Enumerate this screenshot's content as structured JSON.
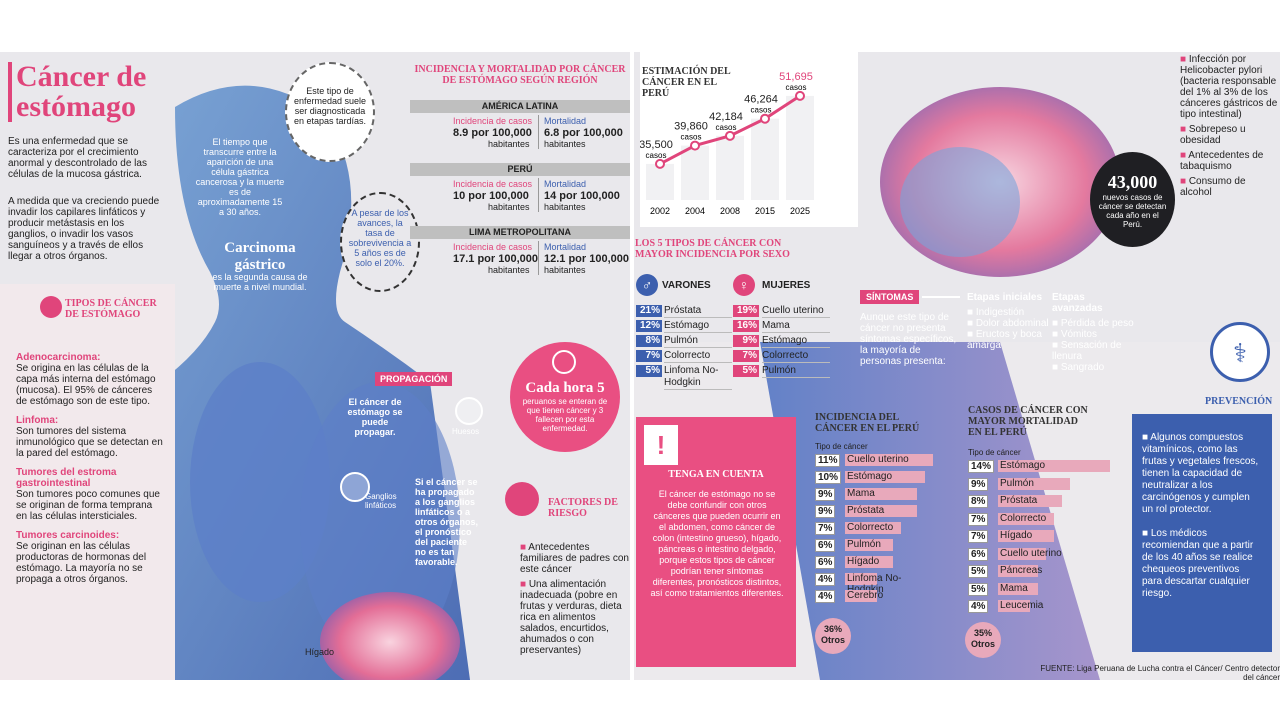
{
  "title": "Cáncer de estómago",
  "intro1": "Es una enfermedad que se caracteriza por el crecimiento anormal y descontrolado de las células de la mucosa gástrica.",
  "intro2": "A medida que va creciendo puede invadir los capilares linfáticos y producir metástasis en los ganglios, o invadir los vasos sanguíneos y a través de ellos llegar a otros órganos.",
  "bubble": "Este tipo de enfermedad suele ser diagnosticada en etapas tardías.",
  "time_text": "El tiempo que transcurre entre la aparición de una célula gástrica cancerosa y la muerte es de aproximadamente 15 a 30 años.",
  "survival": "A pesar de los avances, la tasa de sobrevivencia a 5 años es de solo el 20%.",
  "carcinoma_title": "Carcinoma gástrico",
  "carcinoma_sub": "es la segunda causa de muerte a nivel mundial.",
  "tipos_title": "TIPOS DE CÁNCER DE ESTÓMAGO",
  "tipos": [
    {
      "name": "Adenocarcinoma:",
      "desc": "Se origina en las células de la capa más interna del estómago (mucosa). El 95% de cánceres de estómago son de este tipo."
    },
    {
      "name": "Linfoma:",
      "desc": "Son tumores del sistema inmunológico que se detectan en la pared del estómago."
    },
    {
      "name": "Tumores del estroma gastrointestinal",
      "desc": "Son tumores poco comunes que se originan de forma temprana en las células intersticiales."
    },
    {
      "name": "Tumores carcinoides:",
      "desc": "Se originan en las células productoras de hormonas del estómago. La mayoría no se propaga a otros órganos."
    }
  ],
  "propagacion": {
    "title": "PROPAGACIÓN",
    "text1": "El cáncer de estómago se puede propagar.",
    "text2": "Si el cáncer se ha propagado a los ganglios linfáticos o a otros órganos, el pronóstico del paciente no es tan favorable.",
    "huesos": "Huesos",
    "ganglios": "Ganglios linfáticos",
    "higado": "Hígado"
  },
  "region": {
    "title": "INCIDENCIA Y MORTALIDAD POR CÁNCER DE ESTÓMAGO SEGÚN REGIÓN",
    "inc_label": "Incidencia de casos",
    "mort_label": "Mortalidad",
    "hab": "habitantes",
    "rows": [
      {
        "name": "AMÉRICA LATINA",
        "inc": "8.9 por 100,000",
        "mort": "6.8 por 100,000"
      },
      {
        "name": "PERÚ",
        "inc": "10 por 100,000",
        "mort": "14 por 100,000"
      },
      {
        "name": "LIMA METROPOLITANA",
        "inc": "17.1 por 100,000",
        "mort": "12.1 por 100,000"
      }
    ]
  },
  "clock": {
    "title": "Cada hora 5",
    "text": "peruanos se enteran de que tienen cáncer y 3 fallecen por esta enfermedad."
  },
  "factores": {
    "title": "FACTORES DE RIESGO",
    "items": [
      "Antecedentes familiares de padres con este cáncer",
      "Una alimentación inadecuada (pobre en frutas y verduras, dieta rica en alimentos salados, encurtidos, ahumados o con preservantes)"
    ]
  },
  "estimacion": {
    "title": "ESTIMACIÓN DEL CÁNCER EN EL PERÚ",
    "unit": "casos"
  },
  "chart_data": {
    "type": "line",
    "title": "ESTIMACIÓN DEL CÁNCER EN EL PERÚ",
    "x": [
      "2002",
      "2004",
      "2008",
      "2015",
      "2025"
    ],
    "values": [
      35500,
      39860,
      42184,
      46264,
      51695
    ],
    "labels": [
      "35,500",
      "39,860",
      "42,184",
      "46,264",
      "51,695"
    ]
  },
  "sexo": {
    "title": "LOS 5 TIPOS DE CÁNCER CON MAYOR INCIDENCIA POR SEXO",
    "varones_label": "VARONES",
    "mujeres_label": "MUJERES",
    "varones": [
      {
        "p": "21%",
        "n": "Próstata"
      },
      {
        "p": "12%",
        "n": "Estómago"
      },
      {
        "p": "8%",
        "n": "Pulmón"
      },
      {
        "p": "7%",
        "n": "Colorrecto"
      },
      {
        "p": "5%",
        "n": "Linfoma No-Hodgkin"
      }
    ],
    "mujeres": [
      {
        "p": "19%",
        "n": "Cuello uterino"
      },
      {
        "p": "16%",
        "n": "Mama"
      },
      {
        "p": "9%",
        "n": "Estómago"
      },
      {
        "p": "7%",
        "n": "Colorrecto"
      },
      {
        "p": "5%",
        "n": "Pulmón"
      }
    ]
  },
  "tenga": {
    "title": "TENGA EN CUENTA",
    "text": "El cáncer de estómago no se debe confundir con otros cánceres que pueden ocurrir en el abdomen, como cáncer de colon (intestino grueso), hígado, páncreas o intestino delgado, porque estos tipos de cáncer podrían tener síntomas diferentes, pronósticos distintos, así como tratamientos diferentes."
  },
  "sintomas": {
    "title": "SÍNTOMAS",
    "text": "Aunque este tipo de cáncer no presenta síntomas específicos, la mayoría de personas presenta:",
    "ini_title": "Etapas iniciales",
    "ini": [
      "Indigestión",
      "Dolor abdominal",
      "Eructos y boca amarga"
    ],
    "ava_title": "Etapas avanzadas",
    "ava": [
      "Pérdida de peso",
      "Vómitos",
      "Sensación de llenura",
      "Sangrado"
    ]
  },
  "big": {
    "num": "43,000",
    "text": "nuevos casos de cáncer se detectan cada año en el Perú."
  },
  "riesgos_der": [
    "Infección por Helicobacter pylori (bacteria responsable del 1% al 3% de los cánceres gástricos de tipo intestinal)",
    "Sobrepeso u obesidad",
    "Antecedentes de tabaquismo",
    "Consumo de alcohol"
  ],
  "incidencia_peru": {
    "title": "INCIDENCIA DEL CÁNCER EN EL PERÚ",
    "sub": "Tipo de cáncer",
    "items": [
      {
        "p": "11%",
        "n": "Cuello uterino",
        "v": 11
      },
      {
        "p": "10%",
        "n": "Estómago",
        "v": 10
      },
      {
        "p": "9%",
        "n": "Mama",
        "v": 9
      },
      {
        "p": "9%",
        "n": "Próstata",
        "v": 9
      },
      {
        "p": "7%",
        "n": "Colorrecto",
        "v": 7
      },
      {
        "p": "6%",
        "n": "Pulmón",
        "v": 6
      },
      {
        "p": "6%",
        "n": "Hígado",
        "v": 6
      },
      {
        "p": "4%",
        "n": "Linfoma No-Hodgkin",
        "v": 4
      },
      {
        "p": "4%",
        "n": "Cerebro",
        "v": 4
      }
    ],
    "otros": "36% Otros"
  },
  "mortalidad_peru": {
    "title": "CASOS DE CÁNCER CON MAYOR MORTALIDAD EN EL PERÚ",
    "sub": "Tipo de cáncer",
    "items": [
      {
        "p": "14%",
        "n": "Estómago",
        "v": 14
      },
      {
        "p": "9%",
        "n": "Pulmón",
        "v": 9
      },
      {
        "p": "8%",
        "n": "Próstata",
        "v": 8
      },
      {
        "p": "7%",
        "n": "Colorrecto",
        "v": 7
      },
      {
        "p": "7%",
        "n": "Hígado",
        "v": 7
      },
      {
        "p": "6%",
        "n": "Cuello uterino",
        "v": 6
      },
      {
        "p": "5%",
        "n": "Páncreas",
        "v": 5
      },
      {
        "p": "5%",
        "n": "Mama",
        "v": 5
      },
      {
        "p": "4%",
        "n": "Leucemia",
        "v": 4
      }
    ],
    "otros": "35% Otros"
  },
  "prevencion": {
    "title": "PREVENCIÓN",
    "items": [
      "Algunos compuestos vitamínicos, como las frutas y vegetales frescos, tienen la capacidad de neutralizar a los carcinógenos y cumplen un rol protector.",
      "Los médicos recomiendan que a partir de los 40 años se realice chequeos preventivos para descartar cualquier riesgo."
    ]
  },
  "fuente": "FUENTE: Liga Peruana de Lucha contra el Cáncer/ Centro detector del cáncer"
}
